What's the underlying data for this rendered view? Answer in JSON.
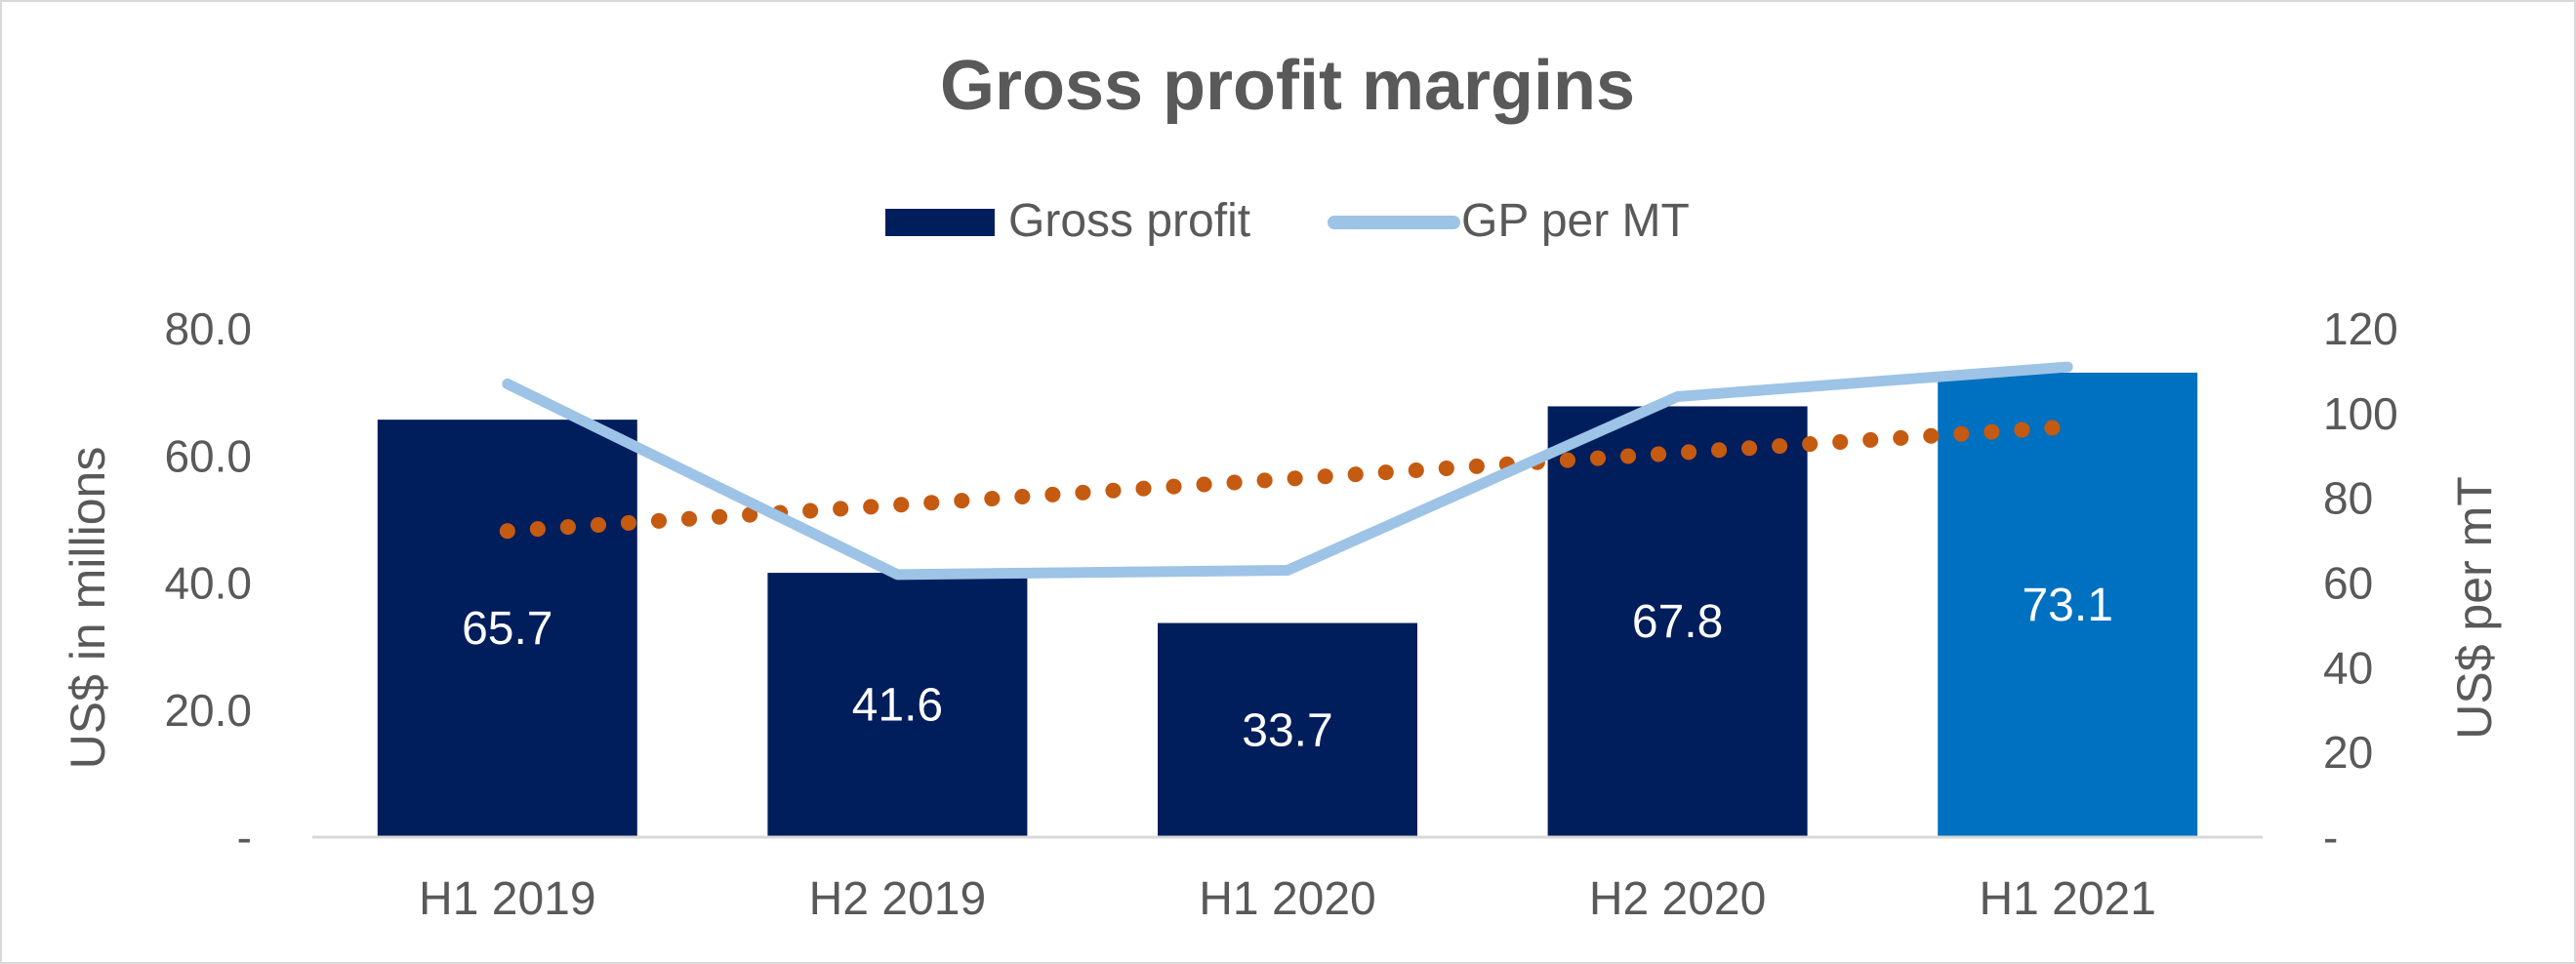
{
  "chart_data": {
    "type": "bar",
    "title": "Gross profit margins",
    "categories": [
      "H1 2019",
      "H2 2019",
      "H1 2020",
      "H2 2020",
      "H1 2021"
    ],
    "series": [
      {
        "name": "Gross profit",
        "type": "bar",
        "axis": "left",
        "values": [
          65.7,
          41.6,
          33.7,
          67.8,
          73.1
        ],
        "color": "#001d5c",
        "highlight_color": "#0070c0",
        "highlight_index": 4,
        "labels": [
          "65.7",
          "41.6",
          "33.7",
          "67.8",
          "73.1"
        ]
      },
      {
        "name": "GP per MT",
        "type": "line",
        "axis": "right",
        "values": [
          107,
          62,
          63,
          104,
          111
        ],
        "color": "#9dc3e6"
      }
    ],
    "trendline": {
      "of_series": "Gross profit",
      "type": "linear",
      "style": "dotted",
      "color": "#c55a11"
    },
    "ylabel": "US$ in millions",
    "ylabel_right": "US$ per mT",
    "ylim": [
      0,
      80
    ],
    "ylim_right": [
      0,
      120
    ],
    "yticks": [
      "-",
      "20.0",
      "40.0",
      "60.0",
      "80.0"
    ],
    "yticks_right": [
      "-",
      "20",
      "40",
      "60",
      "80",
      "100",
      "120"
    ],
    "grid": false,
    "legend_position": "top-center"
  }
}
